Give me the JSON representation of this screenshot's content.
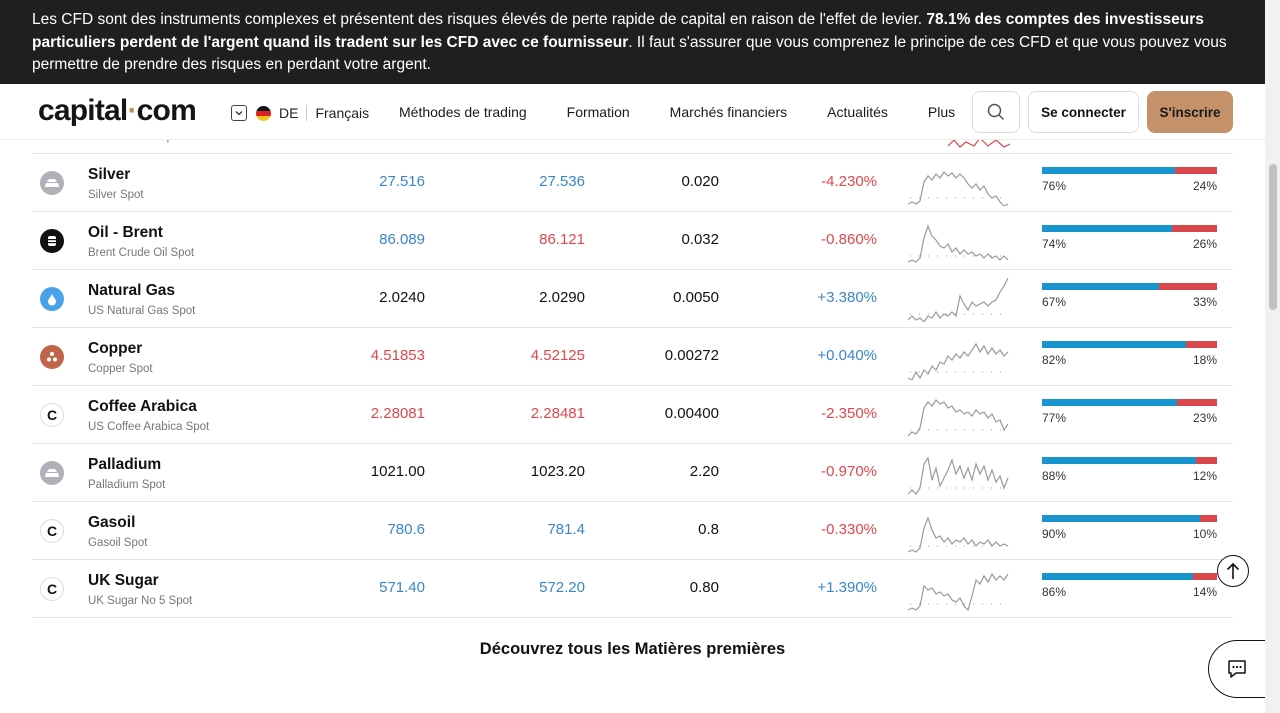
{
  "banner": {
    "text_before": "Les CFD sont des instruments complexes et présentent des risques élevés de perte rapide de capital en raison de l'effet de levier. ",
    "text_bold": "78.1% des comptes des investisseurs particuliers perdent de l'argent quand ils tradent sur les CFD avec ce fournisseur",
    "text_after": ". Il faut s'assurer que vous comprenez le principe de ces CFD et que vous pouvez vous permettre de prendre des risques en perdant votre argent."
  },
  "header": {
    "logo_left": "capital",
    "logo_dot": "·",
    "logo_right": "com",
    "country": "DE",
    "language": "Français",
    "nav": [
      "Méthodes de trading",
      "Formation",
      "Marchés financiers",
      "Actualités",
      "Plus"
    ],
    "login": "Se connecter",
    "signup": "S'inscrire"
  },
  "partial_row_subname": "US Crude Oil Spot",
  "rows": [
    {
      "name": "Silver",
      "sub": "Silver Spot",
      "icon": "silver-bars-icon",
      "icon_color": "#b0b0b8",
      "sell": "27.516",
      "sell_color": "blue",
      "buy": "27.536",
      "buy_color": "blue",
      "spread": "0.020",
      "change": "-4.230%",
      "change_color": "red",
      "buy_pct": 76,
      "buy_label": "76%",
      "sell_label": "24%"
    },
    {
      "name": "Oil - Brent",
      "sub": "Brent Crude Oil Spot",
      "icon": "oil-barrel-icon",
      "icon_color": "#111111",
      "sell": "86.089",
      "sell_color": "blue",
      "buy": "86.121",
      "buy_color": "red",
      "spread": "0.032",
      "change": "-0.860%",
      "change_color": "red",
      "buy_pct": 74,
      "buy_label": "74%",
      "sell_label": "26%"
    },
    {
      "name": "Natural Gas",
      "sub": "US Natural Gas Spot",
      "icon": "gas-drop-icon",
      "icon_color": "#4aa3e8",
      "sell": "2.0240",
      "sell_color": "black",
      "buy": "2.0290",
      "buy_color": "black",
      "spread": "0.0050",
      "change": "+3.380%",
      "change_color": "blue",
      "buy_pct": 67,
      "buy_label": "67%",
      "sell_label": "33%"
    },
    {
      "name": "Copper",
      "sub": "Copper Spot",
      "icon": "copper-icon",
      "icon_color": "#c0654a",
      "sell": "4.51853",
      "sell_color": "red",
      "buy": "4.52125",
      "buy_color": "red",
      "spread": "0.00272",
      "change": "+0.040%",
      "change_color": "blue",
      "buy_pct": 82,
      "buy_label": "82%",
      "sell_label": "18%"
    },
    {
      "name": "Coffee Arabica",
      "sub": "US Coffee Arabica Spot",
      "icon": "capital-c-icon",
      "icon_color": "#ffffff",
      "sell": "2.28081",
      "sell_color": "red",
      "buy": "2.28481",
      "buy_color": "red",
      "spread": "0.00400",
      "change": "-2.350%",
      "change_color": "red",
      "buy_pct": 77,
      "buy_label": "77%",
      "sell_label": "23%"
    },
    {
      "name": "Palladium",
      "sub": "Palladium Spot",
      "icon": "palladium-bars-icon",
      "icon_color": "#b0b0b8",
      "sell": "1021.00",
      "sell_color": "black",
      "buy": "1023.20",
      "buy_color": "black",
      "spread": "2.20",
      "change": "-0.970%",
      "change_color": "red",
      "buy_pct": 88,
      "buy_label": "88%",
      "sell_label": "12%"
    },
    {
      "name": "Gasoil",
      "sub": "Gasoil Spot",
      "icon": "capital-c-icon",
      "icon_color": "#ffffff",
      "sell": "780.6",
      "sell_color": "blue",
      "buy": "781.4",
      "buy_color": "blue",
      "spread": "0.8",
      "change": "-0.330%",
      "change_color": "red",
      "buy_pct": 90,
      "buy_label": "90%",
      "sell_label": "10%"
    },
    {
      "name": "UK Sugar",
      "sub": "UK Sugar No 5 Spot",
      "icon": "capital-c-icon",
      "icon_color": "#ffffff",
      "sell": "571.40",
      "sell_color": "blue",
      "buy": "572.20",
      "buy_color": "blue",
      "spread": "0.80",
      "change": "+1.390%",
      "change_color": "blue",
      "buy_pct": 86,
      "buy_label": "86%",
      "sell_label": "14%"
    }
  ],
  "discover_link": "Découvrez tous les Matières premières",
  "colors": {
    "buy_bar": "#1894cf",
    "sell_bar": "#d9474d",
    "signup": "#c4916a",
    "banner_bg": "#1e1f21"
  }
}
